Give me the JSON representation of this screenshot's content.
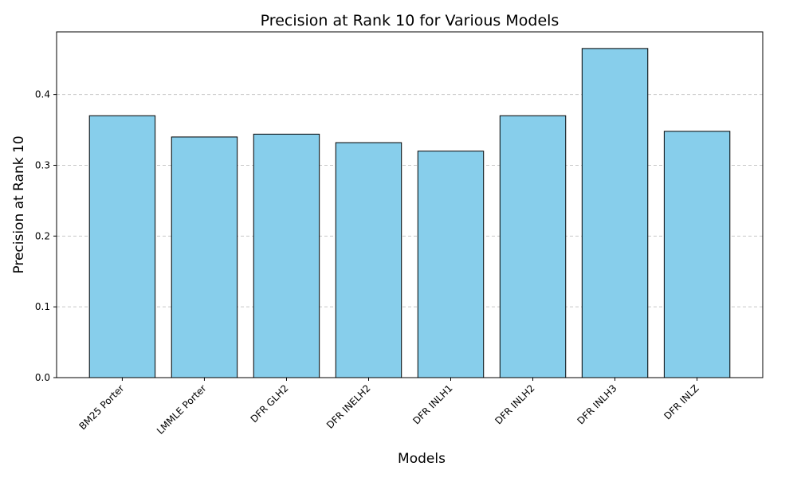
{
  "chart_data": {
    "type": "bar",
    "title": "Precision at Rank 10 for Various Models",
    "xlabel": "Models",
    "ylabel": "Precision at Rank 10",
    "categories": [
      "BM25 Porter",
      "LMMLE Porter",
      "DFR GLH2",
      "DFR INELH2",
      "DFR INLH1",
      "DFR INLH2",
      "DFR INLH3",
      "DFR INLZ"
    ],
    "values": [
      0.37,
      0.34,
      0.344,
      0.332,
      0.32,
      0.37,
      0.465,
      0.348
    ],
    "ylim": [
      0,
      0.4885
    ],
    "yticks": [
      0.0,
      0.1,
      0.2,
      0.3,
      0.4
    ],
    "ytick_labels": [
      "0.0",
      "0.1",
      "0.2",
      "0.3",
      "0.4"
    ],
    "grid": "y-axis dashed",
    "bar_color": "#87CEEB",
    "bar_edge_color": "#000000",
    "grid_color": "#c8c8c8"
  }
}
